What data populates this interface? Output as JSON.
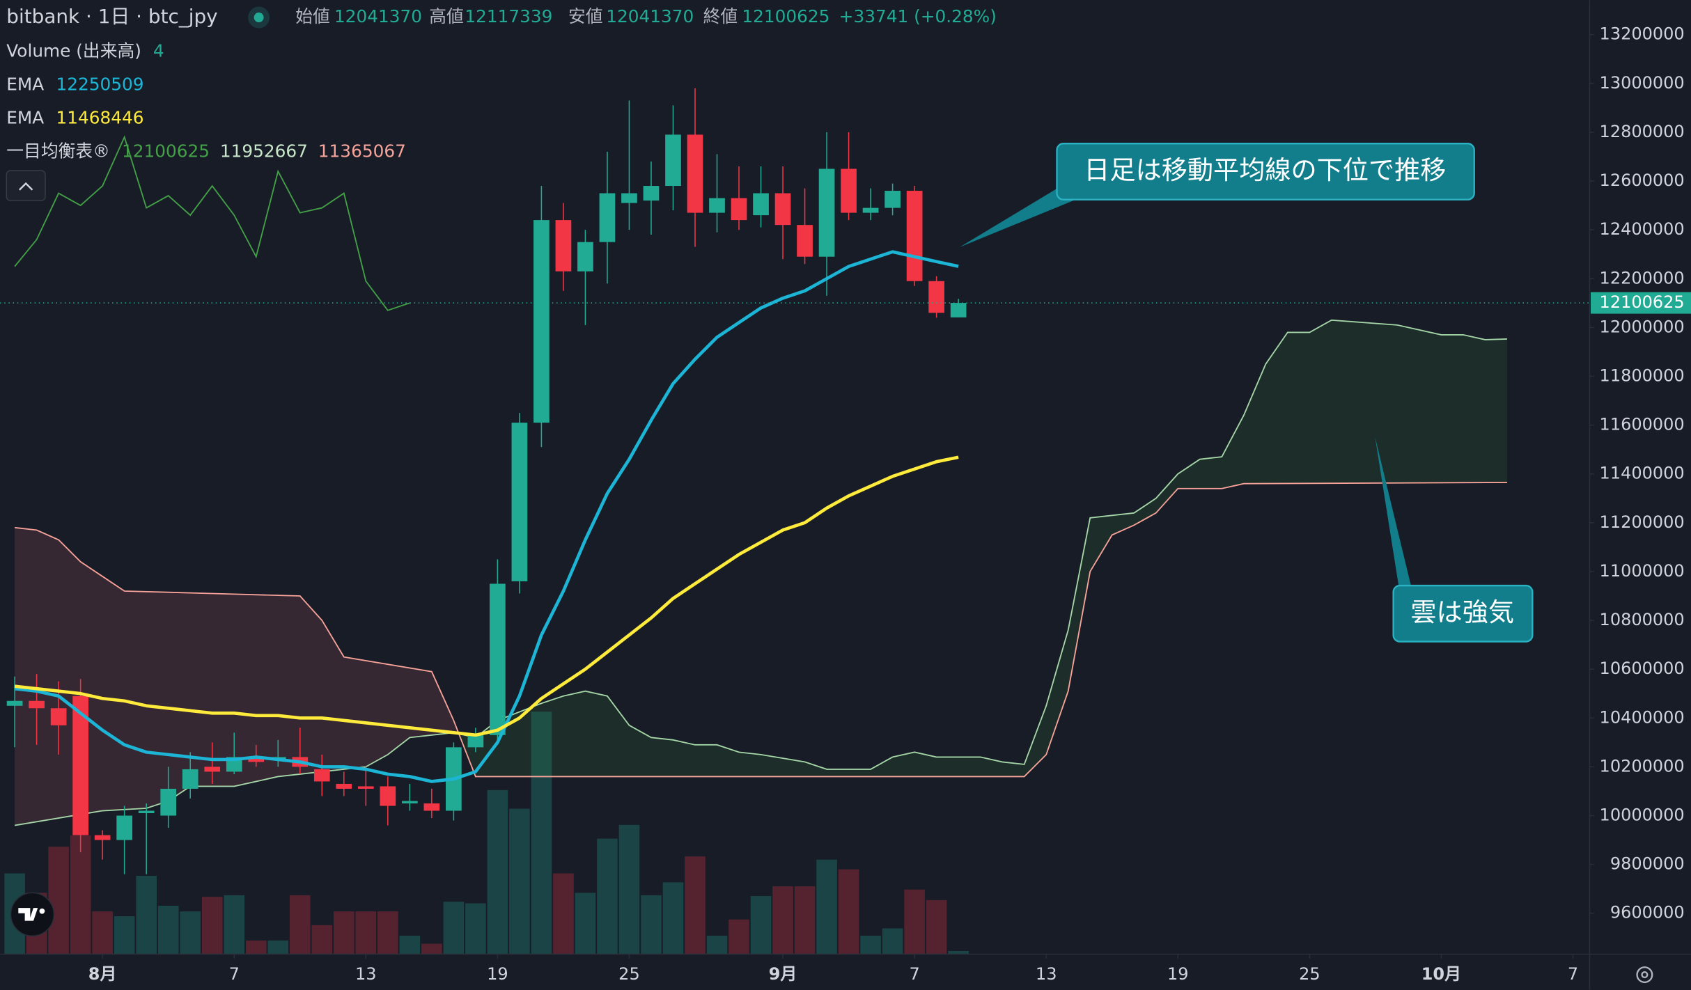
{
  "chart_data": {
    "type": "candlestick",
    "title": "bitbank · 1日 · btc_jpy",
    "ohlc_labels": [
      "始値",
      "高値",
      "安値",
      "終値"
    ],
    "change_label": "+33741 (+0.28%)",
    "up_color": "#22ab94",
    "down_color": "#f23645",
    "x": [
      -4,
      -3,
      -2,
      -1,
      0,
      1,
      2,
      3,
      4,
      5,
      6,
      7,
      8,
      9,
      10,
      11,
      12,
      13,
      14,
      15,
      16,
      17,
      18,
      19,
      20,
      21,
      22,
      23,
      24,
      25,
      26,
      27,
      28,
      29,
      30,
      31,
      32,
      33,
      34,
      35,
      36,
      37,
      38,
      39
    ],
    "open": [
      10450000,
      10470000,
      10440000,
      10490000,
      9920000,
      9900000,
      10010000,
      10000000,
      10110000,
      10200000,
      10180000,
      10240000,
      10230000,
      10240000,
      10190000,
      10130000,
      10120000,
      10120000,
      10050000,
      10050000,
      10020000,
      10280000,
      10330000,
      10960000,
      11610000,
      12440000,
      12230000,
      12350000,
      12510000,
      12520000,
      12580000,
      12790000,
      12470000,
      12530000,
      12460000,
      12550000,
      12420000,
      12290000,
      12650000,
      12470000,
      12490000,
      12560000,
      12190000,
      12041370
    ],
    "high": [
      10570000,
      10580000,
      10550000,
      10560000,
      9940000,
      10040000,
      10050000,
      10200000,
      10260000,
      10300000,
      10340000,
      10290000,
      10310000,
      10360000,
      10250000,
      10180000,
      10200000,
      10160000,
      10130000,
      10110000,
      10300000,
      10360000,
      11050000,
      11650000,
      12580000,
      12510000,
      12400000,
      12720000,
      12930000,
      12680000,
      12910000,
      12980000,
      12710000,
      12660000,
      12660000,
      12660000,
      12570000,
      12800000,
      12800000,
      12570000,
      12590000,
      12580000,
      12210000,
      12117339
    ],
    "low": [
      10280000,
      10290000,
      10250000,
      9850000,
      9820000,
      9760000,
      9760000,
      9950000,
      10070000,
      10130000,
      10170000,
      10200000,
      10200000,
      10170000,
      10080000,
      10080000,
      10040000,
      9960000,
      10020000,
      9990000,
      9980000,
      10260000,
      10290000,
      10910000,
      11510000,
      12150000,
      12010000,
      12180000,
      12400000,
      12380000,
      12480000,
      12330000,
      12390000,
      12400000,
      12410000,
      12280000,
      12260000,
      12130000,
      12440000,
      12440000,
      12460000,
      12170000,
      12040000,
      12041370
    ],
    "close": [
      10470000,
      10440000,
      10370000,
      9920000,
      9900000,
      10000000,
      10020000,
      10110000,
      10190000,
      10180000,
      10240000,
      10220000,
      10240000,
      10200000,
      10140000,
      10110000,
      10110000,
      10040000,
      10060000,
      10020000,
      10280000,
      10330000,
      10950000,
      11610000,
      12440000,
      12230000,
      12350000,
      12550000,
      12550000,
      12580000,
      12790000,
      12470000,
      12530000,
      12440000,
      12550000,
      12420000,
      12290000,
      12650000,
      12470000,
      12490000,
      12560000,
      12190000,
      12060000,
      12100625
    ],
    "volume": {
      "name": "Volume (出来高)",
      "values": [
        100,
        76,
        133,
        147,
        53,
        47,
        97,
        60,
        53,
        71,
        73,
        17,
        17,
        73,
        36,
        53,
        53,
        53,
        23,
        13,
        65,
        63,
        203,
        180,
        300,
        100,
        76,
        143,
        160,
        73,
        89,
        121,
        23,
        43,
        72,
        84,
        84,
        117,
        105,
        23,
        32,
        80,
        67,
        4
      ]
    },
    "series": [
      {
        "name": "EMA",
        "color": "#1cb5d6",
        "values": [
          10520000,
          10510000,
          10490000,
          10420000,
          10350000,
          10290000,
          10260000,
          10250000,
          10240000,
          10230000,
          10230000,
          10240000,
          10230000,
          10220000,
          10200000,
          10200000,
          10190000,
          10170000,
          10160000,
          10140000,
          10150000,
          10180000,
          10300000,
          10490000,
          10740000,
          10920000,
          11130000,
          11320000,
          11460000,
          11620000,
          11770000,
          11870000,
          11960000,
          12020000,
          12080000,
          12120000,
          12150000,
          12200000,
          12250000,
          12280000,
          12310000,
          12290000,
          12270000,
          12250509
        ]
      },
      {
        "name": "EMA",
        "color": "#ffeb3b",
        "values": [
          10530000,
          10520000,
          10510000,
          10500000,
          10480000,
          10470000,
          10450000,
          10440000,
          10430000,
          10420000,
          10420000,
          10410000,
          10410000,
          10400000,
          10400000,
          10390000,
          10380000,
          10370000,
          10360000,
          10350000,
          10340000,
          10330000,
          10350000,
          10400000,
          10480000,
          10540000,
          10600000,
          10670000,
          10740000,
          10810000,
          10890000,
          10950000,
          11010000,
          11070000,
          11120000,
          11170000,
          11200000,
          11260000,
          11310000,
          11350000,
          11390000,
          11420000,
          11450000,
          11468446
        ]
      }
    ],
    "ichimoku": {
      "name": "一目均衡表®",
      "lagging": {
        "color": "#43a047",
        "x": [
          -4,
          -3,
          -2,
          -1,
          0,
          1,
          2,
          3,
          4,
          5,
          6,
          7,
          8,
          9,
          10,
          11,
          12,
          13,
          14
        ],
        "values": [
          12250000,
          12360000,
          12550000,
          12500000,
          12580000,
          12780000,
          12490000,
          12540000,
          12460000,
          12580000,
          12460000,
          12290000,
          12640000,
          12470000,
          12490000,
          12550000,
          12190000,
          12070000,
          12100625
        ]
      },
      "span_a": {
        "color": "#a5d6a7",
        "x": [
          -4,
          -2,
          0,
          2,
          3,
          4,
          6,
          8,
          10,
          12,
          13,
          14,
          16,
          17,
          18,
          20,
          21,
          22,
          23,
          24,
          25,
          26,
          27,
          28,
          29,
          30,
          32,
          33,
          35,
          36,
          37,
          38,
          39,
          40,
          41,
          42,
          43,
          44,
          45,
          46,
          47,
          48,
          49,
          50,
          51,
          52,
          53,
          54,
          55,
          56,
          59,
          61,
          62,
          63,
          64
        ],
        "values": [
          9960000,
          9990000,
          10020000,
          10030000,
          10060000,
          10120000,
          10120000,
          10160000,
          10180000,
          10200000,
          10250000,
          10320000,
          10340000,
          10320000,
          10390000,
          10460000,
          10490000,
          10510000,
          10490000,
          10370000,
          10320000,
          10310000,
          10290000,
          10290000,
          10260000,
          10250000,
          10220000,
          10190000,
          10190000,
          10240000,
          10260000,
          10240000,
          10240000,
          10240000,
          10220000,
          10210000,
          10450000,
          10760000,
          11220000,
          11230000,
          11240000,
          11300000,
          11400000,
          11460000,
          11470000,
          11640000,
          11850000,
          11980000,
          11980000,
          12030000,
          12010000,
          11970000,
          11970000,
          11950000,
          11952667
        ]
      },
      "span_b": {
        "color": "#f7a399",
        "x": [
          -4,
          -3,
          -2,
          -1,
          0,
          1,
          5,
          9,
          10,
          11,
          15,
          16,
          17,
          42,
          43,
          44,
          45,
          46,
          47,
          48,
          49,
          51,
          52,
          64
        ],
        "values": [
          11180000,
          11170000,
          11130000,
          11040000,
          10980000,
          10920000,
          10910000,
          10900000,
          10800000,
          10650000,
          10590000,
          10390000,
          10160000,
          10160000,
          10250000,
          10510000,
          11000000,
          11150000,
          11190000,
          11240000,
          11340000,
          11340000,
          11360000,
          11365067
        ]
      }
    },
    "annotations": [
      "日足は移動平均線の下位で推移",
      "雲は強気"
    ],
    "xlim": [
      -4.67,
      67.76
    ],
    "xticks": [
      {
        "value": 0,
        "label": "8月"
      },
      {
        "value": 6,
        "label": "7"
      },
      {
        "value": 12,
        "label": "13"
      },
      {
        "value": 18,
        "label": "19"
      },
      {
        "value": 24,
        "label": "25"
      },
      {
        "value": 31,
        "label": "9月"
      },
      {
        "value": 37,
        "label": "7"
      },
      {
        "value": 43,
        "label": "13"
      },
      {
        "value": 49,
        "label": "19"
      },
      {
        "value": 55,
        "label": "25"
      },
      {
        "value": 61,
        "label": "10月"
      },
      {
        "value": 67,
        "label": "7"
      }
    ],
    "ylim": [
      9432000,
      13341000
    ],
    "yticks": [
      9600000,
      9800000,
      10000000,
      10200000,
      10400000,
      10600000,
      10800000,
      11000000,
      11200000,
      11400000,
      11600000,
      11800000,
      12000000,
      12200000,
      12400000,
      12600000,
      12800000,
      13000000,
      13200000
    ]
  }
}
